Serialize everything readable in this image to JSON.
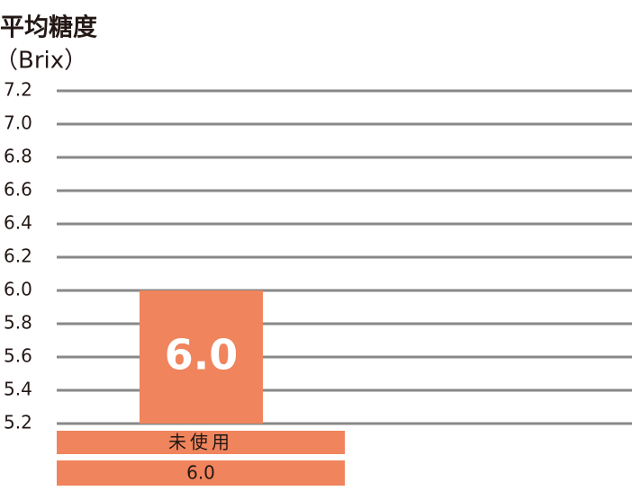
{
  "chart_data": {
    "type": "bar",
    "title": "平均糖度",
    "y_label": "（Brix）",
    "categories": [
      "未使用"
    ],
    "values": [
      6.0
    ],
    "value_labels": [
      "6.0"
    ],
    "color": "#f0845c",
    "ylim": [
      5.2,
      7.2
    ],
    "yticks": [
      5.2,
      5.4,
      5.6,
      5.8,
      {
        "value": 6,
        "label": "6.0"
      },
      6.2,
      6.4,
      6.6,
      6.8,
      {
        "value": 7,
        "label": "7.0"
      },
      7.2
    ],
    "grid": true
  }
}
